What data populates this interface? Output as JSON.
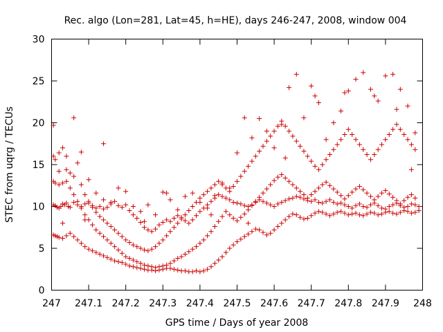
{
  "chart_data": {
    "type": "scatter",
    "title": "Rec. algo (Lon=281, Lat=45, h=HE), days 246-247, 2008, window 004",
    "xlabel": "GPS time / Days of year 2008",
    "ylabel": "STEC from uqrg / TECUs",
    "xlim": [
      247,
      248
    ],
    "ylim": [
      0,
      30
    ],
    "x_ticks": [
      "247",
      "247.1",
      "247.2",
      "247.3",
      "247.4",
      "247.5",
      "247.6",
      "247.7",
      "247.8",
      "247.9",
      "248"
    ],
    "y_ticks": [
      "0",
      "5",
      "10",
      "15",
      "20",
      "25",
      "30"
    ],
    "grid": false,
    "legend": false,
    "marker": "plus",
    "color": "#cc0000",
    "series": [
      {
        "x": [
          247.005,
          247.01,
          247.015,
          247.02,
          247.025,
          247.03,
          247.035,
          247.04,
          247.045,
          247.05,
          247.06,
          247.07,
          247.08,
          247.09,
          247.1,
          247.11,
          247.12,
          247.13,
          247.14,
          247.15,
          247.16,
          247.17,
          247.18,
          247.19,
          247.2,
          247.21,
          247.22,
          247.23,
          247.24,
          247.25,
          247.26,
          247.27,
          247.28,
          247.29,
          247.3,
          247.31,
          247.32,
          247.33,
          247.34,
          247.35,
          247.36,
          247.37,
          247.38,
          247.39,
          247.4,
          247.41,
          247.42,
          247.43,
          247.44,
          247.45,
          247.46,
          247.47,
          247.48,
          247.49,
          247.5,
          247.51,
          247.52,
          247.53,
          247.54,
          247.55,
          247.56,
          247.57,
          247.58,
          247.59,
          247.6,
          247.61,
          247.62,
          247.63,
          247.64,
          247.65,
          247.66,
          247.67,
          247.68,
          247.69,
          247.7,
          247.71,
          247.72,
          247.73,
          247.74,
          247.75,
          247.76,
          247.77,
          247.78,
          247.79,
          247.8,
          247.81,
          247.82,
          247.83,
          247.84,
          247.85,
          247.86,
          247.87,
          247.88,
          247.89,
          247.9,
          247.91,
          247.92,
          247.93,
          247.94,
          247.95,
          247.96,
          247.97,
          247.98,
          247.99
        ],
        "y": [
          10.2,
          10.1,
          9.9,
          9.8,
          10.0,
          10.3,
          10.2,
          10.4,
          10.0,
          9.9,
          10.5,
          10.2,
          10.0,
          10.3,
          10.4,
          10.1,
          9.8,
          10.0,
          9.7,
          9.9,
          10.3,
          10.6,
          10.1,
          9.9,
          10.2,
          9.5,
          9.0,
          8.6,
          8.1,
          7.5,
          7.2,
          7.0,
          7.3,
          7.8,
          8.1,
          8.4,
          8.2,
          8.6,
          8.9,
          8.7,
          8.3,
          8.0,
          8.4,
          8.9,
          9.4,
          9.8,
          10.2,
          10.6,
          11.0,
          11.4,
          11.2,
          11.0,
          10.8,
          10.5,
          10.4,
          10.3,
          10.1,
          10.0,
          10.2,
          10.5,
          10.8,
          10.6,
          10.4,
          10.2,
          10.0,
          10.3,
          10.5,
          10.7,
          10.9,
          11.0,
          11.2,
          11.1,
          10.9,
          10.7,
          10.6,
          10.8,
          10.5,
          10.4,
          10.6,
          10.8,
          10.5,
          10.3,
          10.4,
          10.2,
          10.0,
          9.8,
          10.1,
          10.3,
          10.0,
          9.9,
          10.2,
          10.4,
          10.1,
          9.8,
          9.7,
          10.0,
          10.2,
          10.4,
          10.1,
          9.9,
          10.0,
          10.3,
          10.2,
          10.0
        ]
      },
      {
        "x": [
          247.005,
          247.01,
          247.015,
          247.02,
          247.03,
          247.04,
          247.05,
          247.06,
          247.07,
          247.08,
          247.09,
          247.1,
          247.11,
          247.12,
          247.13,
          247.14,
          247.15,
          247.16,
          247.17,
          247.18,
          247.19,
          247.2,
          247.21,
          247.22,
          247.23,
          247.24,
          247.25,
          247.26,
          247.27,
          247.28,
          247.29,
          247.3,
          247.31,
          247.32,
          247.33,
          247.34,
          247.35,
          247.36,
          247.37,
          247.38,
          247.39,
          247.4,
          247.41,
          247.42,
          247.43,
          247.44,
          247.45,
          247.46,
          247.47,
          247.48,
          247.49,
          247.5,
          247.51,
          247.52,
          247.53,
          247.54,
          247.55,
          247.56,
          247.57,
          247.58,
          247.59,
          247.6,
          247.61,
          247.62,
          247.63,
          247.64,
          247.65,
          247.66,
          247.67,
          247.68,
          247.69,
          247.7,
          247.71,
          247.72,
          247.73,
          247.74,
          247.75,
          247.76,
          247.77,
          247.78,
          247.79,
          247.8,
          247.81,
          247.82,
          247.83,
          247.84,
          247.85,
          247.86,
          247.87,
          247.88,
          247.89,
          247.9,
          247.91,
          247.92,
          247.93,
          247.94,
          247.95,
          247.96,
          247.97,
          247.98,
          247.99
        ],
        "y": [
          6.6,
          6.5,
          6.4,
          6.3,
          6.2,
          6.5,
          6.8,
          6.4,
          6.0,
          5.6,
          5.2,
          4.9,
          4.7,
          4.5,
          4.3,
          4.1,
          3.9,
          3.7,
          3.5,
          3.4,
          3.3,
          3.1,
          2.9,
          2.8,
          2.7,
          2.6,
          2.5,
          2.4,
          2.4,
          2.3,
          2.4,
          2.5,
          2.6,
          2.6,
          2.5,
          2.4,
          2.3,
          2.3,
          2.2,
          2.2,
          2.3,
          2.2,
          2.3,
          2.5,
          2.8,
          3.2,
          3.6,
          4.0,
          4.5,
          5.0,
          5.4,
          5.8,
          6.1,
          6.4,
          6.7,
          7.0,
          7.3,
          7.2,
          6.9,
          6.6,
          6.8,
          7.2,
          7.6,
          8.0,
          8.4,
          8.8,
          9.1,
          9.0,
          8.7,
          8.5,
          8.6,
          8.9,
          9.2,
          9.4,
          9.3,
          9.1,
          8.9,
          9.1,
          9.3,
          9.4,
          9.2,
          9.0,
          9.1,
          9.2,
          9.0,
          8.9,
          9.1,
          9.3,
          9.2,
          9.0,
          9.1,
          9.3,
          9.4,
          9.2,
          9.1,
          9.3,
          9.5,
          9.4,
          9.2,
          9.3,
          9.5
        ]
      },
      {
        "x": [
          247.005,
          247.01,
          247.02,
          247.03,
          247.04,
          247.05,
          247.06,
          247.07,
          247.08,
          247.09,
          247.1,
          247.11,
          247.12,
          247.13,
          247.14,
          247.15,
          247.16,
          247.17,
          247.18,
          247.19,
          247.2,
          247.21,
          247.22,
          247.23,
          247.24,
          247.25,
          247.26,
          247.27,
          247.28,
          247.29,
          247.3,
          247.31,
          247.32,
          247.33,
          247.34,
          247.35,
          247.36,
          247.37,
          247.38,
          247.39,
          247.4,
          247.41,
          247.42,
          247.43,
          247.44,
          247.45,
          247.46,
          247.47,
          247.48,
          247.49,
          247.5,
          247.51,
          247.52,
          247.53,
          247.54,
          247.55,
          247.56,
          247.57,
          247.58,
          247.59,
          247.6,
          247.61,
          247.62,
          247.63,
          247.64,
          247.65,
          247.66,
          247.67,
          247.68,
          247.69,
          247.7,
          247.71,
          247.72,
          247.73,
          247.74,
          247.75,
          247.76,
          247.77,
          247.78,
          247.79,
          247.8,
          247.81,
          247.82,
          247.83,
          247.84,
          247.85,
          247.86,
          247.87,
          247.88,
          247.89,
          247.9,
          247.91,
          247.92,
          247.93,
          247.94,
          247.95,
          247.96,
          247.97,
          247.98
        ],
        "y": [
          13.0,
          12.8,
          12.6,
          12.8,
          13.0,
          12.2,
          11.4,
          10.6,
          9.8,
          9.0,
          8.4,
          7.8,
          7.2,
          6.8,
          6.4,
          6.0,
          5.6,
          5.2,
          4.8,
          4.4,
          4.0,
          3.8,
          3.6,
          3.4,
          3.2,
          3.0,
          2.9,
          2.8,
          2.7,
          2.8,
          2.9,
          3.0,
          3.2,
          3.5,
          3.8,
          4.0,
          4.3,
          4.6,
          4.9,
          5.2,
          5.6,
          6.0,
          6.5,
          7.0,
          7.6,
          8.2,
          8.8,
          9.4,
          9.0,
          8.6,
          8.3,
          8.7,
          9.1,
          9.6,
          10.1,
          10.6,
          11.1,
          11.6,
          12.1,
          12.6,
          13.1,
          13.5,
          13.8,
          13.4,
          13.0,
          12.6,
          12.2,
          11.8,
          11.4,
          11.0,
          11.4,
          11.8,
          12.2,
          12.6,
          12.9,
          12.5,
          12.1,
          11.7,
          11.3,
          10.9,
          11.3,
          11.7,
          12.1,
          12.4,
          12.0,
          11.6,
          11.2,
          10.8,
          11.2,
          11.6,
          11.9,
          11.5,
          11.1,
          10.7,
          10.3,
          10.7,
          11.1,
          11.4,
          11.0
        ]
      },
      {
        "x": [
          247.005,
          247.01,
          247.02,
          247.03,
          247.04,
          247.05,
          247.06,
          247.07,
          247.08,
          247.09,
          247.1,
          247.11,
          247.12,
          247.13,
          247.14,
          247.15,
          247.16,
          247.17,
          247.18,
          247.19,
          247.2,
          247.21,
          247.22,
          247.23,
          247.24,
          247.25,
          247.26,
          247.27,
          247.28,
          247.29,
          247.3,
          247.31,
          247.32,
          247.33,
          247.34,
          247.35,
          247.36,
          247.37,
          247.38,
          247.39,
          247.4,
          247.41,
          247.42,
          247.43,
          247.44,
          247.45,
          247.46,
          247.47,
          247.48,
          247.49,
          247.5,
          247.51,
          247.52,
          247.53,
          247.54,
          247.55,
          247.56,
          247.57,
          247.58,
          247.59,
          247.6,
          247.61,
          247.62,
          247.63,
          247.64,
          247.65,
          247.66,
          247.67,
          247.68,
          247.69,
          247.7,
          247.71,
          247.72,
          247.73,
          247.74,
          247.75,
          247.76,
          247.77,
          247.78,
          247.79,
          247.8,
          247.81,
          247.82,
          247.83,
          247.84,
          247.85,
          247.86,
          247.87,
          247.88,
          247.89,
          247.9,
          247.91,
          247.92,
          247.93,
          247.94,
          247.95,
          247.96,
          247.97,
          247.98
        ],
        "y": [
          16.0,
          15.6,
          16.4,
          17.0,
          14.4,
          14.0,
          13.6,
          15.2,
          12.6,
          11.4,
          10.6,
          9.9,
          9.3,
          8.8,
          8.4,
          8.0,
          7.6,
          7.2,
          6.8,
          6.4,
          6.0,
          5.7,
          5.4,
          5.2,
          5.0,
          4.8,
          4.7,
          4.9,
          5.2,
          5.6,
          6.0,
          6.5,
          7.0,
          7.5,
          8.0,
          8.5,
          9.0,
          9.5,
          10.0,
          10.5,
          11.0,
          11.4,
          11.8,
          12.2,
          12.6,
          13.0,
          12.6,
          12.2,
          11.8,
          12.4,
          13.0,
          13.6,
          14.2,
          14.8,
          15.4,
          16.0,
          16.6,
          17.2,
          17.8,
          18.4,
          19.0,
          19.6,
          20.2,
          19.6,
          19.0,
          18.4,
          17.8,
          17.2,
          16.6,
          16.0,
          15.4,
          14.8,
          14.4,
          15.0,
          15.6,
          16.2,
          16.8,
          17.4,
          18.0,
          18.6,
          19.2,
          18.6,
          18.0,
          17.4,
          16.8,
          16.2,
          15.6,
          16.2,
          16.8,
          17.4,
          18.0,
          18.6,
          19.2,
          19.8,
          19.2,
          18.6,
          18.0,
          17.4,
          16.8
        ]
      },
      {
        "x": [
          247.005,
          247.02,
          247.04,
          247.06,
          247.08,
          247.1,
          247.12,
          247.14,
          247.16,
          247.18,
          247.2,
          247.22,
          247.24,
          247.26,
          247.28,
          247.3,
          247.32,
          247.34,
          247.36,
          247.38,
          247.4,
          247.42,
          247.44,
          247.46,
          247.48,
          247.5,
          247.52,
          247.54,
          247.56,
          247.58,
          247.6,
          247.62,
          247.64,
          247.66,
          247.68,
          247.7,
          247.72,
          247.74,
          247.76,
          247.78,
          247.8,
          247.82,
          247.84,
          247.86,
          247.88,
          247.9,
          247.92,
          247.94,
          247.96,
          247.98
        ],
        "y": [
          19.7,
          14.2,
          16.0,
          20.6,
          16.5,
          13.2,
          11.6,
          10.8,
          10.5,
          12.2,
          11.8,
          10.0,
          9.4,
          10.2,
          9.0,
          11.7,
          10.8,
          9.6,
          11.2,
          11.6,
          10.5,
          9.8,
          11.3,
          12.8,
          12.2,
          16.4,
          20.6,
          18.2,
          20.5,
          19.0,
          17.0,
          19.8,
          24.2,
          25.8,
          20.6,
          24.4,
          22.4,
          18.0,
          20.0,
          21.4,
          23.8,
          25.2,
          26.0,
          24.0,
          22.6,
          25.6,
          25.8,
          24.0,
          22.0,
          18.8
        ]
      },
      {
        "x": [
          247.03,
          247.09,
          247.14,
          247.25,
          247.31,
          247.43,
          247.53,
          247.63,
          247.71,
          247.79,
          247.87,
          247.93,
          247.97
        ],
        "y": [
          8.0,
          8.4,
          17.5,
          8.2,
          11.6,
          9.0,
          8.0,
          15.8,
          23.2,
          23.6,
          23.2,
          21.6,
          14.4
        ]
      }
    ]
  }
}
